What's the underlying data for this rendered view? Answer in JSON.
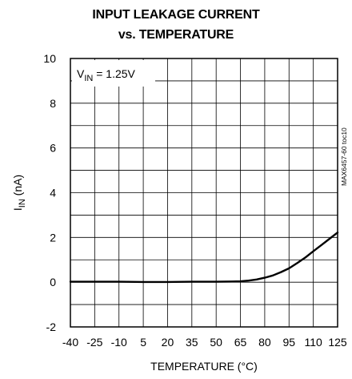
{
  "chart_data": {
    "type": "line",
    "title": [
      "INPUT LEAKAGE CURRENT",
      "vs. TEMPERATURE"
    ],
    "xlabel": "TEMPERATURE (°C)",
    "ylabel": {
      "base": "I",
      "sub": "IN",
      "rest": " (nA)"
    },
    "annotation": {
      "base": "V",
      "sub": "IN",
      "rest": " = 1.25V"
    },
    "side_label": "MAX6457-60 toc10",
    "xlim": [
      -40,
      125
    ],
    "ylim": [
      -2,
      10
    ],
    "xticks": [
      -40,
      -25,
      -10,
      5,
      20,
      35,
      50,
      65,
      80,
      95,
      110,
      125
    ],
    "xtick_labels": [
      "-40",
      "-25",
      "-10",
      "5",
      "20",
      "35",
      "50",
      "65",
      "80",
      "95",
      "110",
      "125"
    ],
    "yticks": [
      -2,
      0,
      2,
      4,
      6,
      8,
      10
    ],
    "ytick_labels": [
      "-2",
      "0",
      "2",
      "4",
      "6",
      "8",
      "10"
    ],
    "grid": true,
    "series": [
      {
        "x": [
          -40,
          -25,
          -10,
          5,
          20,
          35,
          50,
          60,
          65,
          70,
          75,
          80,
          85,
          90,
          95,
          100,
          105,
          110,
          115,
          120,
          125
        ],
        "y": [
          0.02,
          0.02,
          0.02,
          0.01,
          0.01,
          0.02,
          0.02,
          0.03,
          0.04,
          0.07,
          0.12,
          0.2,
          0.3,
          0.45,
          0.62,
          0.85,
          1.1,
          1.38,
          1.66,
          1.94,
          2.22
        ]
      }
    ]
  }
}
